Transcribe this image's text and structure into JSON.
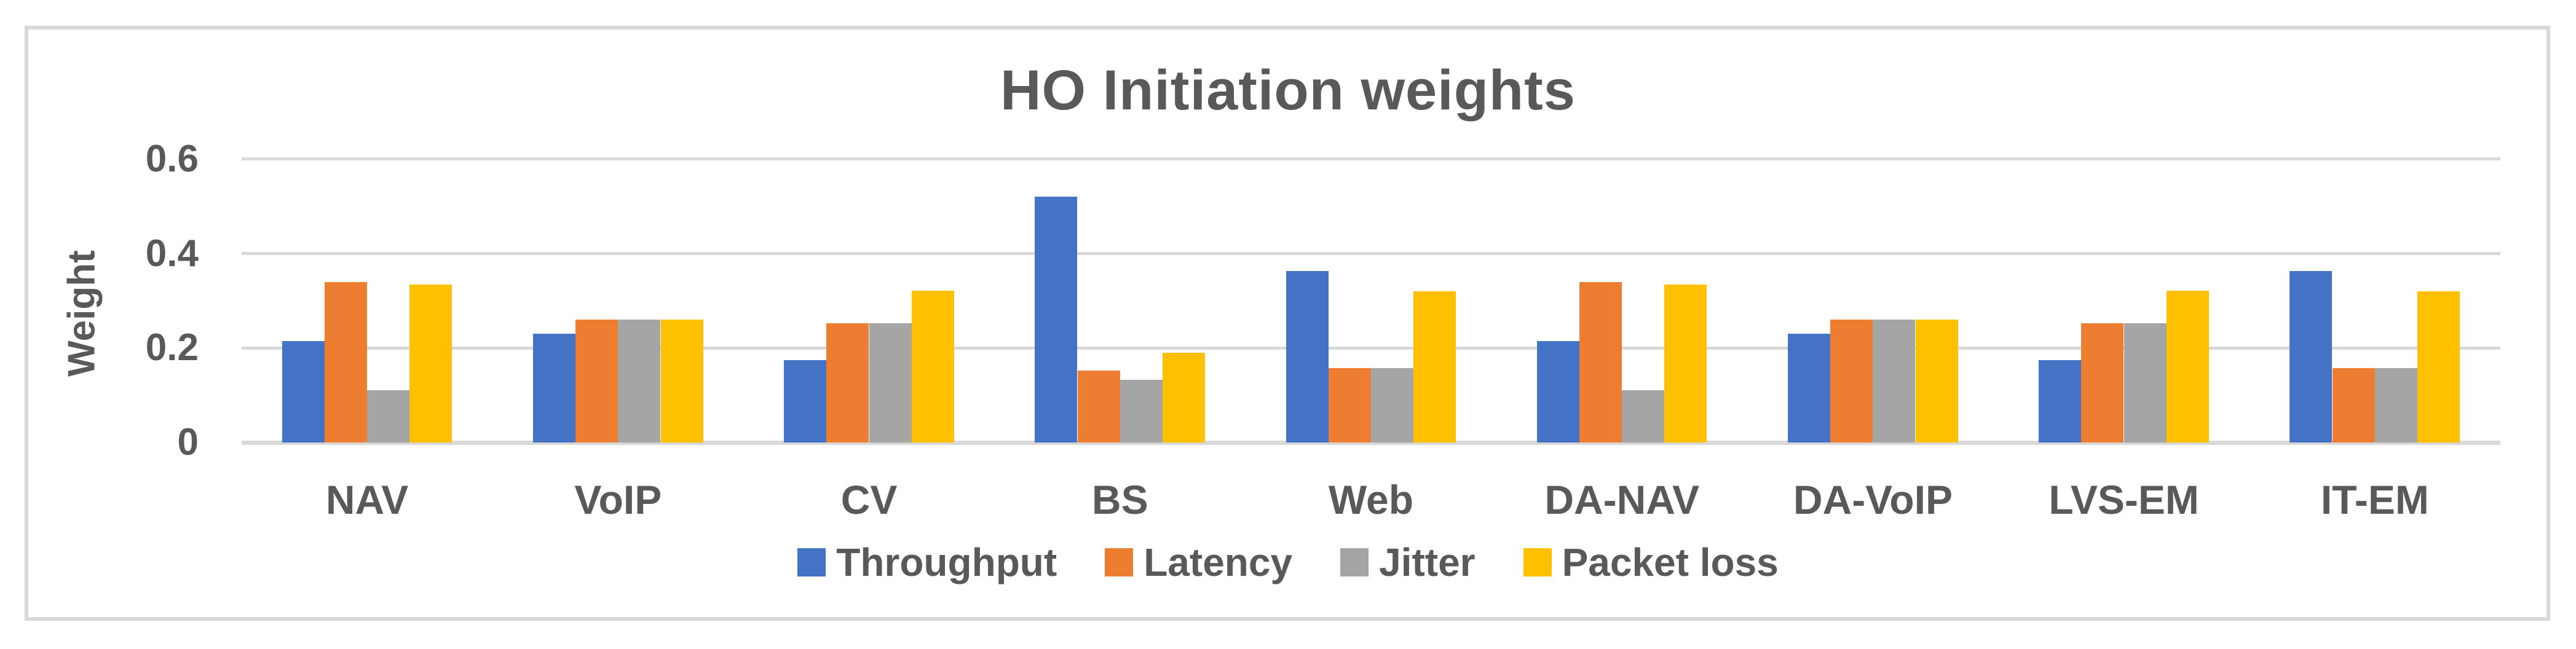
{
  "colors": {
    "text": "#595959",
    "grid": "#D9D9D9",
    "frame_border": "#D9D9D9",
    "background": "#FFFFFF"
  },
  "chart_data": {
    "type": "bar",
    "title": "HO Initiation weights",
    "xlabel": "",
    "ylabel": "Weight",
    "ylim": [
      0,
      0.6
    ],
    "grid": true,
    "legend_position": "bottom-center",
    "yticks": [
      {
        "label": "0",
        "value": 0
      },
      {
        "label": "0.2",
        "value": 0.2
      },
      {
        "label": "0.4",
        "value": 0.4
      },
      {
        "label": "0.6",
        "value": 0.6
      }
    ],
    "categories": [
      "NAV",
      "VoIP",
      "CV",
      "BS",
      "Web",
      "DA-NAV",
      "DA-VoIP",
      "LVS-EM",
      "IT-EM"
    ],
    "series": [
      {
        "name": "Throughput",
        "color": "#4472C4",
        "values": [
          0.215,
          0.23,
          0.175,
          0.52,
          0.363,
          0.215,
          0.23,
          0.175,
          0.363
        ]
      },
      {
        "name": "Latency",
        "color": "#ED7D31",
        "values": [
          0.34,
          0.26,
          0.253,
          0.152,
          0.157,
          0.34,
          0.26,
          0.253,
          0.157
        ]
      },
      {
        "name": "Jitter",
        "color": "#A5A5A5",
        "values": [
          0.11,
          0.26,
          0.253,
          0.133,
          0.157,
          0.11,
          0.26,
          0.253,
          0.157
        ]
      },
      {
        "name": "Packet loss",
        "color": "#FFC000",
        "values": [
          0.335,
          0.26,
          0.322,
          0.19,
          0.32,
          0.335,
          0.26,
          0.322,
          0.32
        ]
      }
    ]
  }
}
